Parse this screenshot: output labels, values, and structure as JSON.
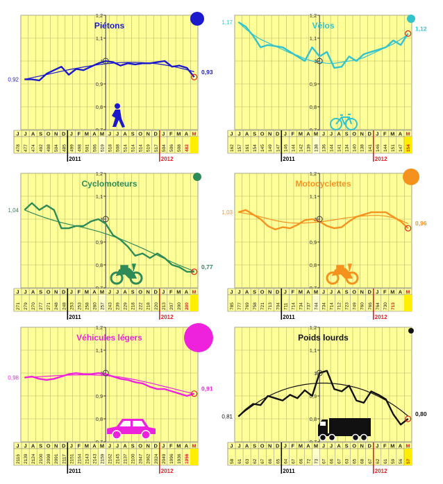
{
  "months": [
    "J",
    "J",
    "A",
    "S",
    "O",
    "N",
    "D",
    "J",
    "F",
    "M",
    "A",
    "M",
    "J",
    "J",
    "A",
    "S",
    "O",
    "N",
    "D",
    "J",
    "F",
    "M",
    "A",
    "M"
  ],
  "year_labels": [
    "2011",
    "2012"
  ],
  "y_ticks": [
    "1,2",
    "1,1",
    "1",
    "0,9",
    "0,8",
    "0,7"
  ],
  "chart_data": [
    {
      "type": "line",
      "title": "Piétons",
      "color": "#1a1acc",
      "icon": "pedestrian-icon",
      "ylim": [
        0.7,
        1.2
      ],
      "start_label": "0,92",
      "end_label": "0,93",
      "series": [
        {
          "values": [
            0.92,
            0.92,
            0.915,
            0.945,
            0.96,
            0.975,
            0.94,
            0.965,
            0.96,
            0.975,
            0.99,
            1.0,
            0.995,
            0.98,
            0.99,
            0.985,
            0.99,
            0.99,
            0.995,
            1.0,
            0.975,
            0.98,
            0.97,
            0.93
          ]
        }
      ],
      "trend": [
        0.92,
        0.927,
        0.934,
        0.941,
        0.948,
        0.955,
        0.962,
        0.968,
        0.974,
        0.979,
        0.984,
        0.988,
        0.991,
        0.993,
        0.994,
        0.994,
        0.993,
        0.991,
        0.988,
        0.983,
        0.977,
        0.97,
        0.962,
        0.953
      ],
      "counts": [
        "478",
        "477",
        "474",
        "492",
        "498",
        "504",
        "485",
        "499",
        "498",
        "501",
        "506",
        "519",
        "518",
        "508",
        "514",
        "514",
        "514",
        "519",
        "517",
        "504",
        "506",
        "508",
        "482"
      ]
    },
    {
      "type": "line",
      "title": "Vélos",
      "color": "#33c3cc",
      "icon": "bicycle-icon",
      "ylim": [
        0.7,
        1.2
      ],
      "start_label": "1,17",
      "end_label": "1,12",
      "series": [
        {
          "values": [
            1.17,
            1.15,
            1.11,
            1.06,
            1.07,
            1.065,
            1.06,
            1.04,
            1.02,
            1.0,
            1.06,
            1.02,
            1.04,
            0.97,
            0.975,
            1.02,
            1.0,
            1.03,
            1.04,
            1.05,
            1.06,
            1.09,
            1.07,
            1.12
          ]
        }
      ],
      "trend": [
        1.17,
        1.14,
        1.115,
        1.095,
        1.08,
        1.065,
        1.05,
        1.035,
        1.025,
        1.01,
        1.0,
        0.995,
        0.99,
        0.99,
        0.995,
        1.0,
        1.005,
        1.015,
        1.03,
        1.045,
        1.06,
        1.075,
        1.095,
        1.115
      ],
      "counts": [
        "162",
        "157",
        "161",
        "154",
        "145",
        "149",
        "147",
        "146",
        "144",
        "142",
        "139",
        "138",
        "136",
        "144",
        "141",
        "134",
        "140",
        "138",
        "141",
        "146",
        "144",
        "151",
        "147",
        "154"
      ]
    },
    {
      "type": "line",
      "title": "Cyclomoteurs",
      "color": "#2e8b57",
      "icon": "moped-icon",
      "ylim": [
        0.7,
        1.2
      ],
      "start_label": "1,04",
      "end_label": "0,77",
      "series": [
        {
          "values": [
            1.04,
            1.07,
            1.04,
            1.06,
            1.04,
            0.96,
            0.96,
            0.97,
            0.97,
            0.99,
            1.0,
            0.98,
            0.93,
            0.91,
            0.88,
            0.84,
            0.85,
            0.83,
            0.85,
            0.83,
            0.8,
            0.79,
            0.77,
            0.77
          ]
        }
      ],
      "trend": [
        1.04,
        1.027,
        1.015,
        1.004,
        0.994,
        0.985,
        0.977,
        0.97,
        0.963,
        0.955,
        0.946,
        0.936,
        0.925,
        0.913,
        0.9,
        0.886,
        0.872,
        0.857,
        0.842,
        0.827,
        0.812,
        0.798,
        0.785,
        0.773
      ],
      "counts": [
        "271",
        "279",
        "270",
        "277",
        "271",
        "248",
        "248",
        "253",
        "253",
        "258",
        "260",
        "257",
        "243",
        "239",
        "229",
        "218",
        "222",
        "218",
        "220",
        "213",
        "207",
        "200",
        "200"
      ]
    },
    {
      "type": "line",
      "title": "Motocyclettes",
      "color": "#f5921e",
      "icon": "motorcycle-icon",
      "ylim": [
        0.7,
        1.2
      ],
      "start_label": "1,03",
      "end_label": "0,96",
      "series": [
        {
          "values": [
            1.03,
            1.04,
            1.02,
            1.0,
            0.97,
            0.955,
            0.965,
            0.96,
            0.975,
            0.995,
            1.0,
            0.99,
            0.97,
            0.96,
            0.965,
            0.99,
            1.01,
            1.02,
            1.03,
            1.03,
            1.03,
            1.01,
            0.99,
            0.96
          ]
        }
      ],
      "trend": [
        1.03,
        1.025,
        1.018,
        1.01,
        1.002,
        0.994,
        0.988,
        0.984,
        0.982,
        0.983,
        0.985,
        0.988,
        0.992,
        0.997,
        1.002,
        1.007,
        1.011,
        1.014,
        1.016,
        1.016,
        1.013,
        1.006,
        0.995,
        0.98
      ],
      "counts": [
        "785",
        "777",
        "769",
        "758",
        "721",
        "713",
        "704",
        "711",
        "714",
        "734",
        "737",
        "744",
        "734",
        "714",
        "712",
        "723",
        "749",
        "760",
        "766",
        "764",
        "730",
        "713"
      ]
    },
    {
      "type": "line",
      "title": "Véhicules légers",
      "color": "#ee22dd",
      "icon": "car-icon",
      "ylim": [
        0.7,
        1.2
      ],
      "start_label": "0,98",
      "end_label": "0,91",
      "series": [
        {
          "values": [
            0.98,
            0.985,
            0.975,
            0.97,
            0.975,
            0.985,
            0.995,
            1.0,
            0.995,
            0.995,
            1.0,
            0.995,
            0.985,
            0.975,
            0.97,
            0.96,
            0.955,
            0.94,
            0.93,
            0.93,
            0.92,
            0.91,
            0.9,
            0.91
          ]
        }
      ],
      "trend": [
        0.98,
        0.982,
        0.984,
        0.986,
        0.988,
        0.99,
        0.991,
        0.992,
        0.992,
        0.992,
        0.991,
        0.989,
        0.986,
        0.982,
        0.977,
        0.971,
        0.964,
        0.957,
        0.949,
        0.941,
        0.933,
        0.925,
        0.917,
        0.909
      ],
      "counts": [
        "2116",
        "2139",
        "2124",
        "2100",
        "2098",
        "2091",
        "2117",
        "2151",
        "2164",
        "2143",
        "2143",
        "2159",
        "2162",
        "2145",
        "2137",
        "2100",
        "2047",
        "2062",
        "2024",
        "2049",
        "1996",
        "1936",
        "1956"
      ]
    },
    {
      "type": "line",
      "title": "Poids lourds",
      "color": "#111111",
      "icon": "truck-icon",
      "ylim": [
        0.7,
        1.2
      ],
      "start_label": "0,81",
      "end_label": "0,80",
      "series": [
        {
          "values": [
            0.81,
            0.84,
            0.865,
            0.86,
            0.9,
            0.89,
            0.88,
            0.905,
            0.89,
            0.925,
            0.9,
            1.0,
            1.01,
            0.93,
            0.92,
            0.945,
            0.88,
            0.87,
            0.92,
            0.905,
            0.885,
            0.82,
            0.775,
            0.8
          ]
        }
      ],
      "trend": [
        0.81,
        0.836,
        0.859,
        0.88,
        0.898,
        0.913,
        0.926,
        0.936,
        0.944,
        0.95,
        0.954,
        0.956,
        0.956,
        0.954,
        0.95,
        0.944,
        0.936,
        0.926,
        0.913,
        0.898,
        0.881,
        0.861,
        0.838,
        0.812
      ],
      "counts": [
        "58",
        "61",
        "63",
        "62",
        "67",
        "66",
        "65",
        "64",
        "67",
        "66",
        "72",
        "73",
        "67",
        "66",
        "67",
        "63",
        "65",
        "68",
        "67",
        "62",
        "61",
        "59",
        "56",
        "57"
      ]
    }
  ]
}
